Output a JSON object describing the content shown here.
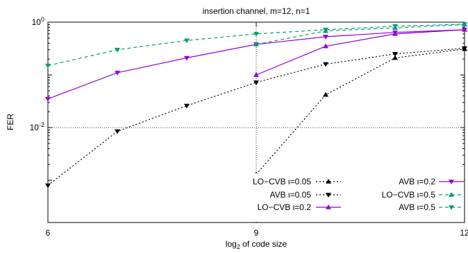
{
  "chart_data": {
    "type": "line",
    "title": "insertion channel, m=12, n=1",
    "xlabel": "log",
    "xlabel_sub": "2",
    "xlabel_rest": " of code size",
    "ylabel": "FER",
    "xlim": [
      6,
      12
    ],
    "ylim_log10": [
      -3.8,
      0
    ],
    "y_scale": "log",
    "x_ticks": [
      "6",
      "9",
      "12"
    ],
    "y_ticks": [
      {
        "mantissa": "10",
        "exp": "0"
      },
      {
        "mantissa": "10",
        "exp": "-2"
      }
    ],
    "grid": "dotted lines at x=9 and y=10^-2",
    "legend_position": "bottom-right",
    "series": [
      {
        "name": "LO−CVB ι=0.05",
        "color": "#000000",
        "dash": "dotted",
        "marker": "triangle-up",
        "x": [
          9,
          10,
          11,
          12
        ],
        "y": [
          0.0013,
          0.042,
          0.21,
          0.31
        ]
      },
      {
        "name": "AVB ι=0.05",
        "color": "#000000",
        "dash": "dotted",
        "marker": "triangle-down",
        "x": [
          6,
          7,
          8,
          9,
          10,
          11,
          12
        ],
        "y": [
          0.0008,
          0.0085,
          0.026,
          0.072,
          0.16,
          0.25,
          0.32
        ]
      },
      {
        "name": "LO−CVB ι=0.2",
        "color": "#9400d3",
        "dash": "solid",
        "marker": "triangle-up",
        "x": [
          9,
          10,
          11,
          12
        ],
        "y": [
          0.1,
          0.35,
          0.6,
          0.72
        ]
      },
      {
        "name": "AVB ι=0.2",
        "color": "#9400d3",
        "dash": "solid",
        "marker": "triangle-down",
        "x": [
          6,
          7,
          8,
          9,
          10,
          11,
          12
        ],
        "y": [
          0.035,
          0.11,
          0.21,
          0.38,
          0.53,
          0.64,
          0.72
        ]
      },
      {
        "name": "LO−CVB ι=0.5",
        "color": "#009e73",
        "dash": "dashed",
        "marker": "triangle-up",
        "x": [
          9,
          10,
          11,
          12
        ],
        "y": [
          0.38,
          0.68,
          0.78,
          0.9
        ]
      },
      {
        "name": "AVB ι=0.5",
        "color": "#009e73",
        "dash": "dashed",
        "marker": "triangle-down",
        "x": [
          6,
          7,
          8,
          9,
          10,
          11,
          12
        ],
        "y": [
          0.15,
          0.3,
          0.45,
          0.6,
          0.72,
          0.84,
          0.92
        ]
      }
    ]
  }
}
